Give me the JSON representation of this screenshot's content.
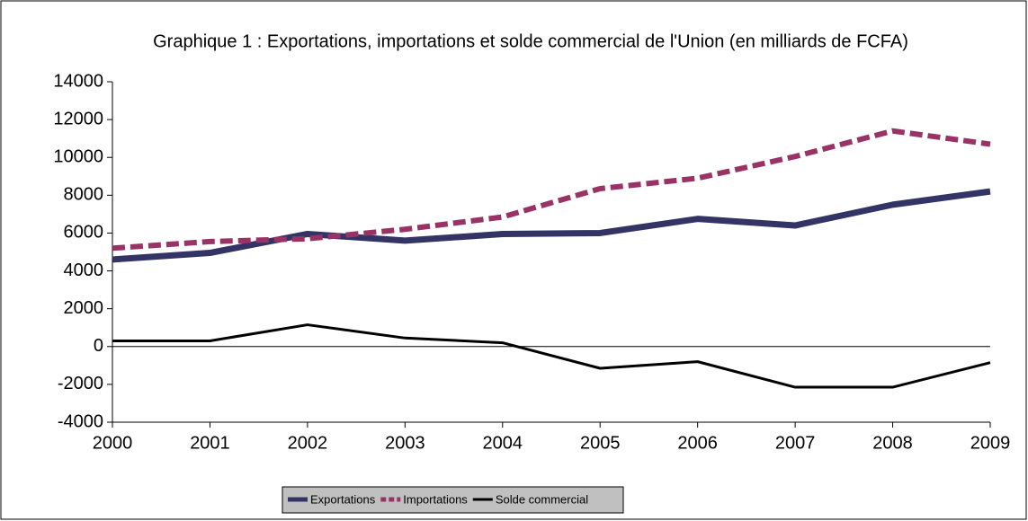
{
  "chart_data": {
    "type": "line",
    "title": "Graphique 1 : Exportations, importations et solde commercial de l'Union (en milliards de FCFA)",
    "categories": [
      "2000",
      "2001",
      "2002",
      "2003",
      "2004",
      "2005",
      "2006",
      "2007",
      "2008",
      "2009"
    ],
    "series": [
      {
        "name": "Exportations",
        "color": "#333366",
        "style": "solid",
        "width": 7,
        "values": [
          4600,
          4950,
          5950,
          5600,
          5950,
          6000,
          6750,
          6400,
          7500,
          8200
        ]
      },
      {
        "name": "Importations",
        "color": "#993366",
        "style": "dashed",
        "width": 6,
        "values": [
          5200,
          5550,
          5700,
          6200,
          6850,
          8350,
          8900,
          10050,
          11400,
          10700
        ]
      },
      {
        "name": "Solde commercial",
        "color": "#000000",
        "style": "solid",
        "width": 3,
        "values": [
          300,
          300,
          1150,
          450,
          200,
          -1150,
          -800,
          -2150,
          -2150,
          -850
        ]
      }
    ],
    "ylim": [
      -4000,
      14000
    ],
    "yticks": [
      -4000,
      -2000,
      0,
      2000,
      4000,
      6000,
      8000,
      10000,
      12000,
      14000
    ],
    "legend": "bottom"
  }
}
